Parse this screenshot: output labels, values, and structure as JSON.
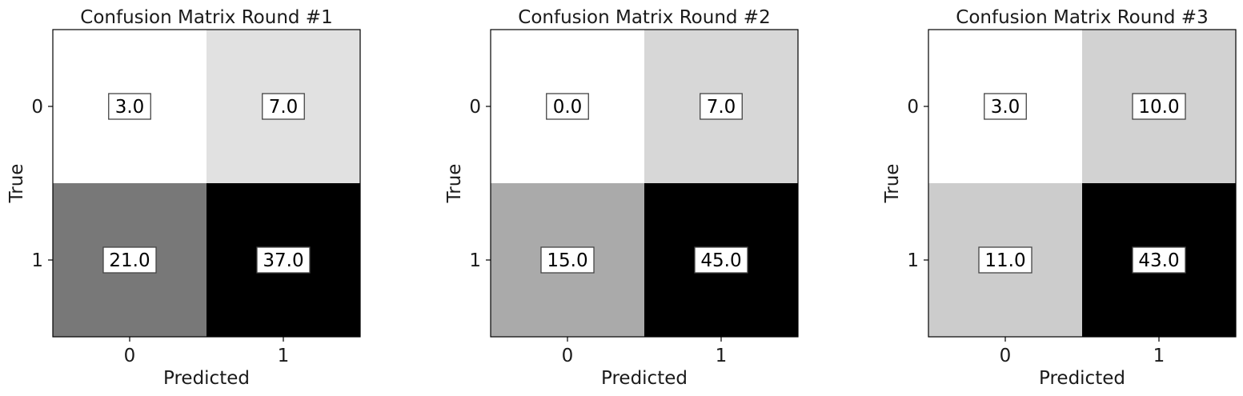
{
  "chart_data": [
    {
      "type": "heatmap",
      "title": "Confusion Matrix Round #1",
      "xlabel": "Predicted",
      "ylabel": "True",
      "x_categories": [
        "0",
        "1"
      ],
      "y_categories": [
        "0",
        "1"
      ],
      "cell_labels": [
        [
          "3.0",
          "7.0"
        ],
        [
          "21.0",
          "37.0"
        ]
      ],
      "values": [
        [
          3.0,
          7.0
        ],
        [
          21.0,
          37.0
        ]
      ],
      "colormap": "gray_r",
      "grid": false
    },
    {
      "type": "heatmap",
      "title": "Confusion Matrix Round #2",
      "xlabel": "Predicted",
      "ylabel": "True",
      "x_categories": [
        "0",
        "1"
      ],
      "y_categories": [
        "0",
        "1"
      ],
      "cell_labels": [
        [
          "0.0",
          "7.0"
        ],
        [
          "15.0",
          "45.0"
        ]
      ],
      "values": [
        [
          0.0,
          7.0
        ],
        [
          15.0,
          45.0
        ]
      ],
      "colormap": "gray_r",
      "grid": false
    },
    {
      "type": "heatmap",
      "title": "Confusion Matrix Round #3",
      "xlabel": "Predicted",
      "ylabel": "True",
      "x_categories": [
        "0",
        "1"
      ],
      "y_categories": [
        "0",
        "1"
      ],
      "cell_labels": [
        [
          "3.0",
          "10.0"
        ],
        [
          "11.0",
          "43.0"
        ]
      ],
      "values": [
        [
          3.0,
          10.0
        ],
        [
          11.0,
          43.0
        ]
      ],
      "colormap": "gray_r",
      "grid": false
    }
  ]
}
